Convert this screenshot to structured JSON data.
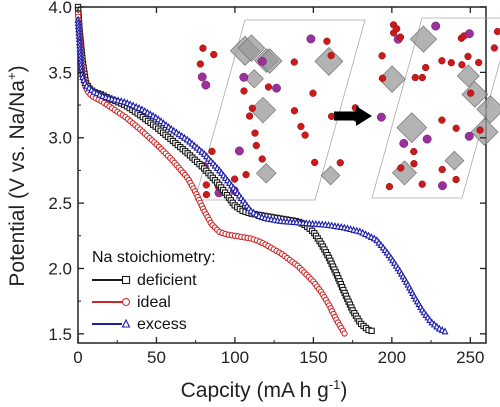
{
  "chart_data": {
    "type": "scatter",
    "xlabel": "Capcity (mA h g",
    "xlabel_sup": "-1",
    "xlabel_end": ")",
    "ylabel": "Potential (V vs. Na/Na",
    "ylabel_sup": "+",
    "ylabel_end": ")",
    "xlim": [
      0,
      260
    ],
    "ylim": [
      1.43,
      4.0
    ],
    "xticks": [
      "0",
      "50",
      "100",
      "150",
      "200",
      "250"
    ],
    "yticks": [
      "1.5",
      "2.0",
      "2.5",
      "3.0",
      "3.5",
      "4.0"
    ],
    "legend_title": "Na stoichiometry:",
    "legend_position": "bottom-left",
    "series": [
      {
        "name": "deficient",
        "color": "#1a1a1a",
        "marker": "square",
        "points": [
          [
            0,
            4.0
          ],
          [
            1,
            3.82
          ],
          [
            2,
            3.7
          ],
          [
            3,
            3.58
          ],
          [
            4,
            3.5
          ],
          [
            5,
            3.42
          ],
          [
            7,
            3.38
          ],
          [
            10,
            3.35
          ],
          [
            15,
            3.33
          ],
          [
            20,
            3.3
          ],
          [
            30,
            3.25
          ],
          [
            40,
            3.17
          ],
          [
            50,
            3.08
          ],
          [
            60,
            2.98
          ],
          [
            70,
            2.88
          ],
          [
            80,
            2.77
          ],
          [
            90,
            2.64
          ],
          [
            95,
            2.56
          ],
          [
            100,
            2.48
          ],
          [
            105,
            2.44
          ],
          [
            110,
            2.42
          ],
          [
            120,
            2.4
          ],
          [
            130,
            2.38
          ],
          [
            140,
            2.36
          ],
          [
            145,
            2.33
          ],
          [
            150,
            2.28
          ],
          [
            155,
            2.19
          ],
          [
            160,
            2.08
          ],
          [
            165,
            1.95
          ],
          [
            170,
            1.81
          ],
          [
            175,
            1.68
          ],
          [
            180,
            1.58
          ],
          [
            185,
            1.53
          ],
          [
            188,
            1.52
          ]
        ]
      },
      {
        "name": "ideal",
        "color": "#cc2a2a",
        "marker": "circle",
        "points": [
          [
            0,
            3.95
          ],
          [
            1,
            3.78
          ],
          [
            2,
            3.6
          ],
          [
            3,
            3.48
          ],
          [
            5,
            3.38
          ],
          [
            7,
            3.34
          ],
          [
            10,
            3.31
          ],
          [
            15,
            3.28
          ],
          [
            20,
            3.24
          ],
          [
            30,
            3.16
          ],
          [
            40,
            3.06
          ],
          [
            50,
            2.95
          ],
          [
            60,
            2.83
          ],
          [
            70,
            2.69
          ],
          [
            75,
            2.58
          ],
          [
            80,
            2.45
          ],
          [
            85,
            2.34
          ],
          [
            90,
            2.28
          ],
          [
            95,
            2.26
          ],
          [
            100,
            2.25
          ],
          [
            105,
            2.24
          ],
          [
            110,
            2.23
          ],
          [
            115,
            2.21
          ],
          [
            120,
            2.18
          ],
          [
            130,
            2.11
          ],
          [
            140,
            2.02
          ],
          [
            150,
            1.9
          ],
          [
            155,
            1.82
          ],
          [
            160,
            1.72
          ],
          [
            165,
            1.6
          ],
          [
            170,
            1.5
          ]
        ]
      },
      {
        "name": "excess",
        "color": "#1c1caa",
        "marker": "triangle",
        "points": [
          [
            0,
            3.9
          ],
          [
            1,
            3.72
          ],
          [
            2,
            3.55
          ],
          [
            3,
            3.46
          ],
          [
            5,
            3.4
          ],
          [
            10,
            3.35
          ],
          [
            15,
            3.32
          ],
          [
            20,
            3.3
          ],
          [
            30,
            3.27
          ],
          [
            40,
            3.22
          ],
          [
            50,
            3.15
          ],
          [
            60,
            3.06
          ],
          [
            70,
            2.98
          ],
          [
            80,
            2.88
          ],
          [
            90,
            2.75
          ],
          [
            100,
            2.6
          ],
          [
            105,
            2.52
          ],
          [
            110,
            2.44
          ],
          [
            115,
            2.4
          ],
          [
            120,
            2.38
          ],
          [
            130,
            2.36
          ],
          [
            140,
            2.35
          ],
          [
            150,
            2.34
          ],
          [
            160,
            2.33
          ],
          [
            170,
            2.31
          ],
          [
            180,
            2.28
          ],
          [
            190,
            2.22
          ],
          [
            195,
            2.15
          ],
          [
            200,
            2.07
          ],
          [
            205,
            1.98
          ],
          [
            210,
            1.88
          ],
          [
            215,
            1.77
          ],
          [
            220,
            1.67
          ],
          [
            225,
            1.59
          ],
          [
            230,
            1.54
          ],
          [
            235,
            1.51
          ]
        ]
      }
    ]
  }
}
